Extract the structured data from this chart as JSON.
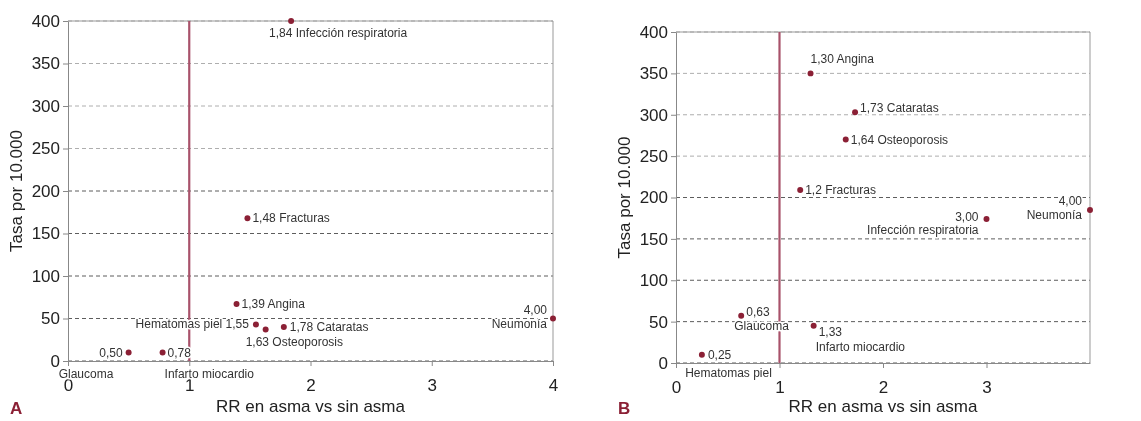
{
  "chart_data": [
    {
      "type": "scatter",
      "title": "A",
      "xlabel": "RR en asma vs sin asma",
      "ylabel": "Tasa por 10.000",
      "x": [
        0.5,
        0.78,
        1.39,
        1.55,
        1.63,
        1.78,
        1.48,
        1.84,
        4.0
      ],
      "series": [
        {
          "color": "#8b2035",
          "values": [
            10,
            10,
            67,
            43,
            37,
            40,
            168,
            400,
            50
          ]
        }
      ],
      "xlim": [
        0,
        4
      ],
      "xticks": [
        0,
        1,
        2,
        3,
        4
      ],
      "ylim": [
        0,
        400
      ],
      "yticks": [
        0,
        50,
        100,
        150,
        200,
        250,
        300,
        350,
        400
      ],
      "grid": "y",
      "marker": "circle",
      "ref_lines": [
        {
          "axis": "x",
          "value": 1,
          "color": "#a8526a"
        }
      ],
      "annotations": [
        {
          "text": "1,84 Infección respiratoria",
          "x": 1.84,
          "y": 400
        },
        {
          "text": "1,48 Fracturas",
          "x": 1.48,
          "y": 168
        },
        {
          "text": "1,39 Angina",
          "x": 1.39,
          "y": 67
        },
        {
          "text": "Hematomas piel 1,55",
          "x": 1.55,
          "y": 43
        },
        {
          "text": "1,78 Cataratas",
          "x": 1.78,
          "y": 40
        },
        {
          "text": "1,63 Osteoporosis",
          "x": 1.63,
          "y": 37
        },
        {
          "text": "0,50",
          "x": 0.5,
          "y": 10
        },
        {
          "text": "Glaucoma",
          "x": 0.5,
          "y": 10
        },
        {
          "text": "0,78",
          "x": 0.78,
          "y": 10
        },
        {
          "text": "Infarto miocardio",
          "x": 0.78,
          "y": 10
        },
        {
          "text": "4,00",
          "x": 4.0,
          "y": 50
        },
        {
          "text": "Neumonía",
          "x": 4.0,
          "y": 50
        }
      ]
    },
    {
      "type": "scatter",
      "title": "B",
      "xlabel": "RR en asma vs sin asma",
      "ylabel": "Tasa por 10.000",
      "x": [
        1.3,
        1.73,
        1.64,
        1.2,
        3.0,
        4.0,
        0.63,
        1.33,
        0.25
      ],
      "series": [
        {
          "color": "#8b2035",
          "values": [
            350,
            303,
            270,
            209,
            174,
            185,
            57,
            45,
            10
          ]
        }
      ],
      "xlim": [
        0,
        4
      ],
      "xticks": [
        0,
        1,
        2,
        3
      ],
      "ylim": [
        0,
        400
      ],
      "yticks": [
        0,
        50,
        100,
        150,
        200,
        250,
        300,
        350,
        400
      ],
      "grid": "y",
      "marker": "circle",
      "ref_lines": [
        {
          "axis": "x",
          "value": 1,
          "color": "#a8526a"
        }
      ],
      "annotations": [
        {
          "text": "1,30 Angina",
          "x": 1.3,
          "y": 350
        },
        {
          "text": "1,73 Cataratas",
          "x": 1.73,
          "y": 303
        },
        {
          "text": "1,64 Osteoporosis",
          "x": 1.64,
          "y": 270
        },
        {
          "text": "1,2 Fracturas",
          "x": 1.2,
          "y": 209
        },
        {
          "text": "3,00",
          "x": 3.0,
          "y": 174
        },
        {
          "text": "Infección respiratoria",
          "x": 3.0,
          "y": 174
        },
        {
          "text": "4,00",
          "x": 4.0,
          "y": 185
        },
        {
          "text": "Neumonía",
          "x": 4.0,
          "y": 185
        },
        {
          "text": "0,63",
          "x": 0.63,
          "y": 57
        },
        {
          "text": "Glaucoma",
          "x": 0.63,
          "y": 57
        },
        {
          "text": "1,33",
          "x": 1.33,
          "y": 45
        },
        {
          "text": "Infarto miocardio",
          "x": 1.33,
          "y": 45
        },
        {
          "text": "0,25",
          "x": 0.25,
          "y": 10
        },
        {
          "text": "Hematomas piel",
          "x": 0.25,
          "y": 10
        }
      ]
    }
  ]
}
